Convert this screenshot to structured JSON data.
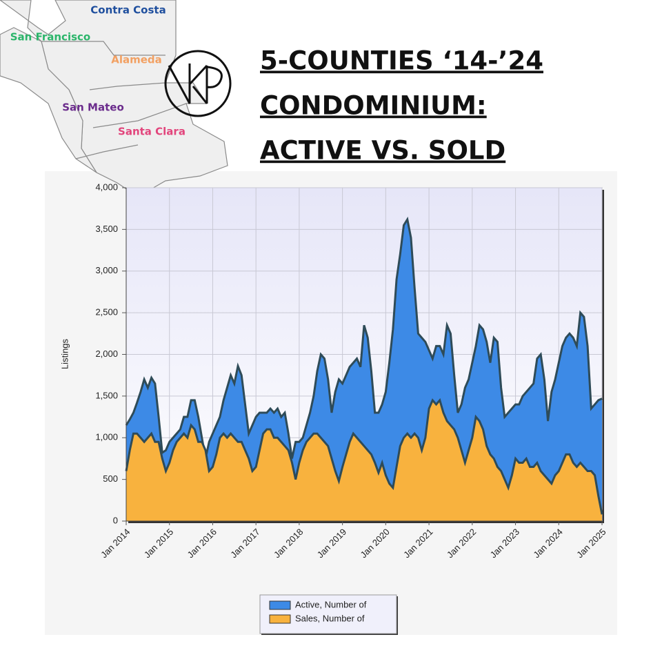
{
  "chart_data": {
    "type": "area",
    "title": [
      "5-COUNTIES ‘14-’24",
      "CONDOMINIUM:",
      "ACTIVE VS. SOLD"
    ],
    "map_labels": [
      {
        "text": "Contra Costa",
        "color": "#1f4f9e"
      },
      {
        "text": "San Francisco",
        "color": "#2bb56a"
      },
      {
        "text": "Alameda",
        "color": "#f2a062"
      },
      {
        "text": "San Mateo",
        "color": "#6b2c8c"
      },
      {
        "text": "Santa Clara",
        "color": "#e2457c"
      }
    ],
    "y_label": "Listings",
    "ylim": [
      0,
      4000
    ],
    "yticks": [
      0,
      500,
      {
        "value": 1000,
        "label": "1,000"
      },
      {
        "value": 1500,
        "label": "1,500"
      },
      {
        "value": 2000,
        "label": "2,000"
      },
      {
        "value": 2500,
        "label": "2,500"
      },
      {
        "value": 3000,
        "label": "3,000"
      },
      {
        "value": 3500,
        "label": "3,500"
      },
      {
        "value": 4000,
        "label": "4,000"
      }
    ],
    "grid": true,
    "categories": [
      "Jan 2014",
      null,
      null,
      null,
      null,
      null,
      null,
      null,
      null,
      null,
      null,
      null,
      "Jan 2015",
      null,
      null,
      null,
      null,
      null,
      null,
      null,
      null,
      null,
      null,
      null,
      "Jan 2016",
      null,
      null,
      null,
      null,
      null,
      null,
      null,
      null,
      null,
      null,
      null,
      "Jan 2017",
      null,
      null,
      null,
      null,
      null,
      null,
      null,
      null,
      null,
      null,
      null,
      "Jan 2018",
      null,
      null,
      null,
      null,
      null,
      null,
      null,
      null,
      null,
      null,
      null,
      "Jan 2019",
      null,
      null,
      null,
      null,
      null,
      null,
      null,
      null,
      null,
      null,
      null,
      "Jan 2020",
      null,
      null,
      null,
      null,
      null,
      null,
      null,
      null,
      null,
      null,
      null,
      "Jan 2021",
      null,
      null,
      null,
      null,
      null,
      null,
      null,
      null,
      null,
      null,
      null,
      "Jan 2022",
      null,
      null,
      null,
      null,
      null,
      null,
      null,
      null,
      null,
      null,
      null,
      "Jan 2023",
      null,
      null,
      null,
      null,
      null,
      null,
      null,
      null,
      null,
      null,
      null,
      "Jan 2024",
      null,
      null,
      null,
      null,
      null,
      null,
      null,
      null,
      null,
      null,
      null,
      "Jan 2025"
    ],
    "series": [
      {
        "name": "Active, Number of",
        "color": "#3d8ae6",
        "values": [
          1150,
          1220,
          1300,
          1420,
          1550,
          1700,
          1600,
          1720,
          1650,
          1250,
          820,
          850,
          950,
          1000,
          1050,
          1100,
          1250,
          1250,
          1450,
          1450,
          1250,
          1000,
          750,
          950,
          1050,
          1150,
          1250,
          1450,
          1600,
          1750,
          1650,
          1860,
          1750,
          1400,
          1050,
          1150,
          1250,
          1300,
          1300,
          1300,
          1350,
          1300,
          1350,
          1250,
          1300,
          1050,
          750,
          950,
          950,
          1000,
          1150,
          1300,
          1500,
          1800,
          2000,
          1950,
          1700,
          1300,
          1550,
          1700,
          1650,
          1750,
          1850,
          1900,
          1950,
          1850,
          2350,
          2200,
          1800,
          1300,
          1300,
          1400,
          1550,
          1900,
          2300,
          2900,
          3200,
          3550,
          3620,
          3400,
          2800,
          2250,
          2200,
          2150,
          2050,
          1950,
          2100,
          2100,
          2000,
          2350,
          2250,
          1750,
          1300,
          1400,
          1600,
          1700,
          1900,
          2100,
          2350,
          2300,
          2150,
          1900,
          2200,
          2150,
          1600,
          1250,
          1300,
          1350,
          1400,
          1400,
          1500,
          1550,
          1600,
          1650,
          1950,
          2000,
          1700,
          1200,
          1550,
          1700,
          1900,
          2100,
          2200,
          2250,
          2200,
          2100,
          2500,
          2450,
          2100,
          1350,
          1400,
          1450,
          1470
        ]
      },
      {
        "name": "Sales, Number of",
        "color": "#f8b23e",
        "values": [
          600,
          850,
          1050,
          1050,
          1000,
          950,
          1000,
          1050,
          950,
          950,
          750,
          600,
          700,
          850,
          950,
          1000,
          1050,
          1000,
          1150,
          1100,
          950,
          950,
          850,
          600,
          650,
          800,
          1000,
          1050,
          1000,
          1050,
          1000,
          950,
          950,
          850,
          750,
          600,
          650,
          850,
          1050,
          1100,
          1100,
          1000,
          1000,
          950,
          900,
          850,
          700,
          500,
          700,
          850,
          950,
          1000,
          1050,
          1050,
          1000,
          950,
          900,
          750,
          600,
          480,
          650,
          800,
          950,
          1050,
          1000,
          950,
          900,
          850,
          800,
          700,
          580,
          700,
          550,
          450,
          400,
          650,
          900,
          1000,
          1050,
          1000,
          1050,
          1000,
          850,
          1000,
          1350,
          1450,
          1400,
          1450,
          1300,
          1200,
          1150,
          1100,
          1000,
          850,
          700,
          850,
          1000,
          1250,
          1200,
          1100,
          900,
          800,
          750,
          650,
          600,
          500,
          400,
          550,
          750,
          700,
          700,
          750,
          650,
          650,
          700,
          600,
          550,
          500,
          450,
          550,
          600,
          700,
          800,
          800,
          700,
          650,
          700,
          650,
          600,
          600,
          550,
          300,
          80
        ]
      }
    ]
  }
}
